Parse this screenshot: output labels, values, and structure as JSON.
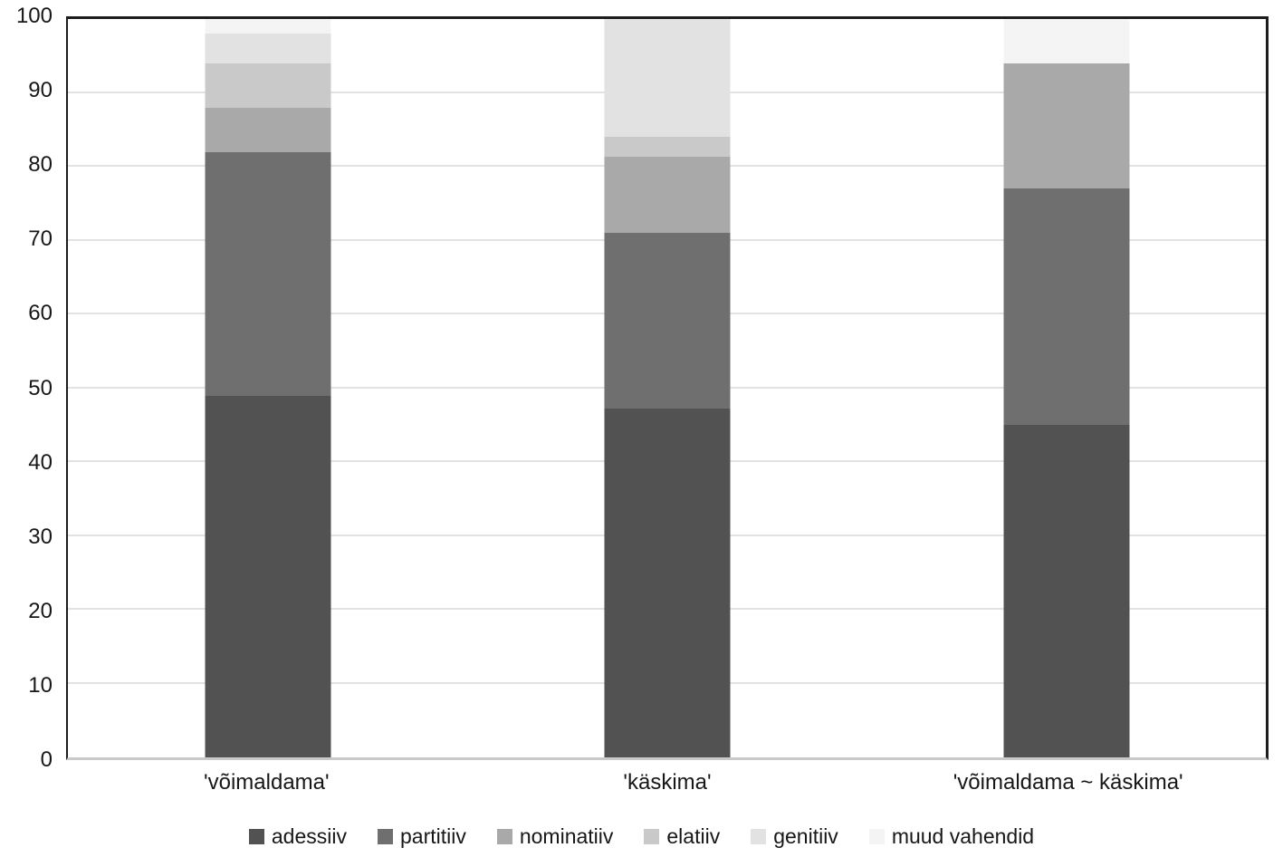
{
  "chart_data": {
    "type": "bar",
    "stacked": true,
    "orientation": "vertical",
    "title": "",
    "xlabel": "",
    "ylabel": "",
    "ylim": [
      0,
      100
    ],
    "yticks": [
      0,
      10,
      20,
      30,
      40,
      50,
      60,
      70,
      80,
      90,
      100
    ],
    "grid": true,
    "legend_position": "bottom",
    "categories": [
      "'võimaldama'",
      "'käskima'",
      "'võimaldama ~ käskima'"
    ],
    "series": [
      {
        "name": "adessiiv",
        "color": "#525252",
        "values": [
          49.0,
          47.3,
          45.0
        ]
      },
      {
        "name": "partitiiv",
        "color": "#6f6f6f",
        "values": [
          33.0,
          23.7,
          32.0
        ]
      },
      {
        "name": "nominatiiv",
        "color": "#a9a9a9",
        "values": [
          6.0,
          10.3,
          17.0
        ]
      },
      {
        "name": "elatiiv",
        "color": "#c9c9c9",
        "values": [
          6.0,
          2.7,
          0.0
        ]
      },
      {
        "name": "genitiiv",
        "color": "#e2e2e2",
        "values": [
          4.0,
          16.0,
          0.0
        ]
      },
      {
        "name": "muud vahendid",
        "color": "#f4f4f4",
        "values": [
          2.0,
          0.0,
          6.0
        ]
      }
    ],
    "colors": {
      "plot_border_dark": "#1d1d1d",
      "axis_bottom": "#c9c9c9",
      "gridline": "#e2e2e2",
      "text": "#171717",
      "background": "#ffffff"
    }
  }
}
